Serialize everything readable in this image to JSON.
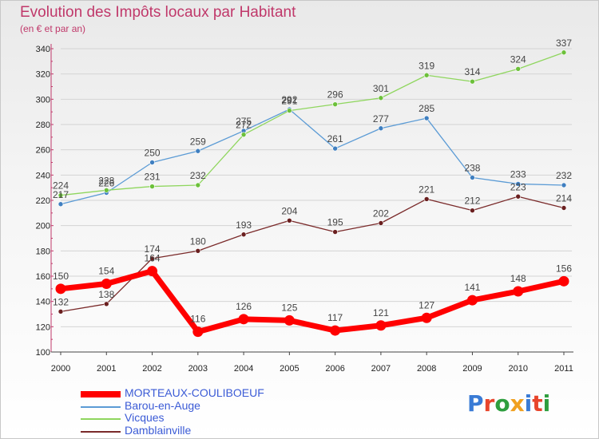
{
  "title": "Evolution des Impôts locaux par Habitant",
  "subtitle": "(en € et par an)",
  "brand": {
    "text": "Proxiti",
    "letter_colors": [
      "#3a7bd5",
      "#e8452c",
      "#2e9e3e",
      "#f0a020",
      "#3a7bd5",
      "#e8452c",
      "#2e9e3e"
    ]
  },
  "chart_data": {
    "type": "line",
    "x": [
      "2000",
      "2001",
      "2002",
      "2003",
      "2004",
      "2005",
      "2006",
      "2007",
      "2008",
      "2009",
      "2010",
      "2011"
    ],
    "ylim": [
      100,
      340
    ],
    "yticks": [
      "100",
      "120",
      "140",
      "160",
      "180",
      "200",
      "220",
      "240",
      "260",
      "280",
      "300",
      "320",
      "340"
    ],
    "grid": true,
    "legend_position": "bottom-left",
    "series": [
      {
        "name": "Barou-en-Auge",
        "color": "#5b9bd5",
        "marker_color": "#3f7fc0",
        "values": [
          217,
          226,
          250,
          259,
          275,
          292,
          261,
          277,
          285,
          238,
          233,
          232
        ],
        "labels": [
          "217",
          "226",
          "250",
          "259",
          "275",
          "292",
          "261",
          "277",
          "285",
          "238",
          "233",
          "232"
        ]
      },
      {
        "name": "Vicques",
        "color": "#8fd65e",
        "marker_color": "#6cc03a",
        "values": [
          224,
          228,
          231,
          232,
          272,
          291,
          296,
          301,
          319,
          314,
          324,
          337
        ],
        "labels": [
          "224",
          "228",
          "231",
          "232",
          "272",
          "291",
          "296",
          "301",
          "319",
          "314",
          "324",
          "337"
        ]
      },
      {
        "name": "Damblainville",
        "color": "#7a2a2a",
        "marker_color": "#6a1f1f",
        "values": [
          132,
          138,
          174,
          180,
          193,
          204,
          195,
          202,
          221,
          212,
          223,
          214
        ],
        "labels": [
          "132",
          "138",
          "174",
          "180",
          "193",
          "204",
          "195",
          "202",
          "221",
          "212",
          "223",
          "214"
        ]
      },
      {
        "name": "MORTEAUX-COULIBOEUF",
        "color": "#ff0000",
        "marker_color": "#ff0000",
        "bold": true,
        "values": [
          150,
          154,
          164,
          116,
          126,
          125,
          117,
          121,
          127,
          141,
          148,
          156
        ],
        "labels": [
          "150",
          "154",
          "164",
          "116",
          "126",
          "125",
          "117",
          "121",
          "127",
          "141",
          "148",
          "156"
        ]
      }
    ],
    "legend": [
      "MORTEAUX-COULIBOEUF",
      "Barou-en-Auge",
      "Vicques",
      "Damblainville"
    ]
  }
}
